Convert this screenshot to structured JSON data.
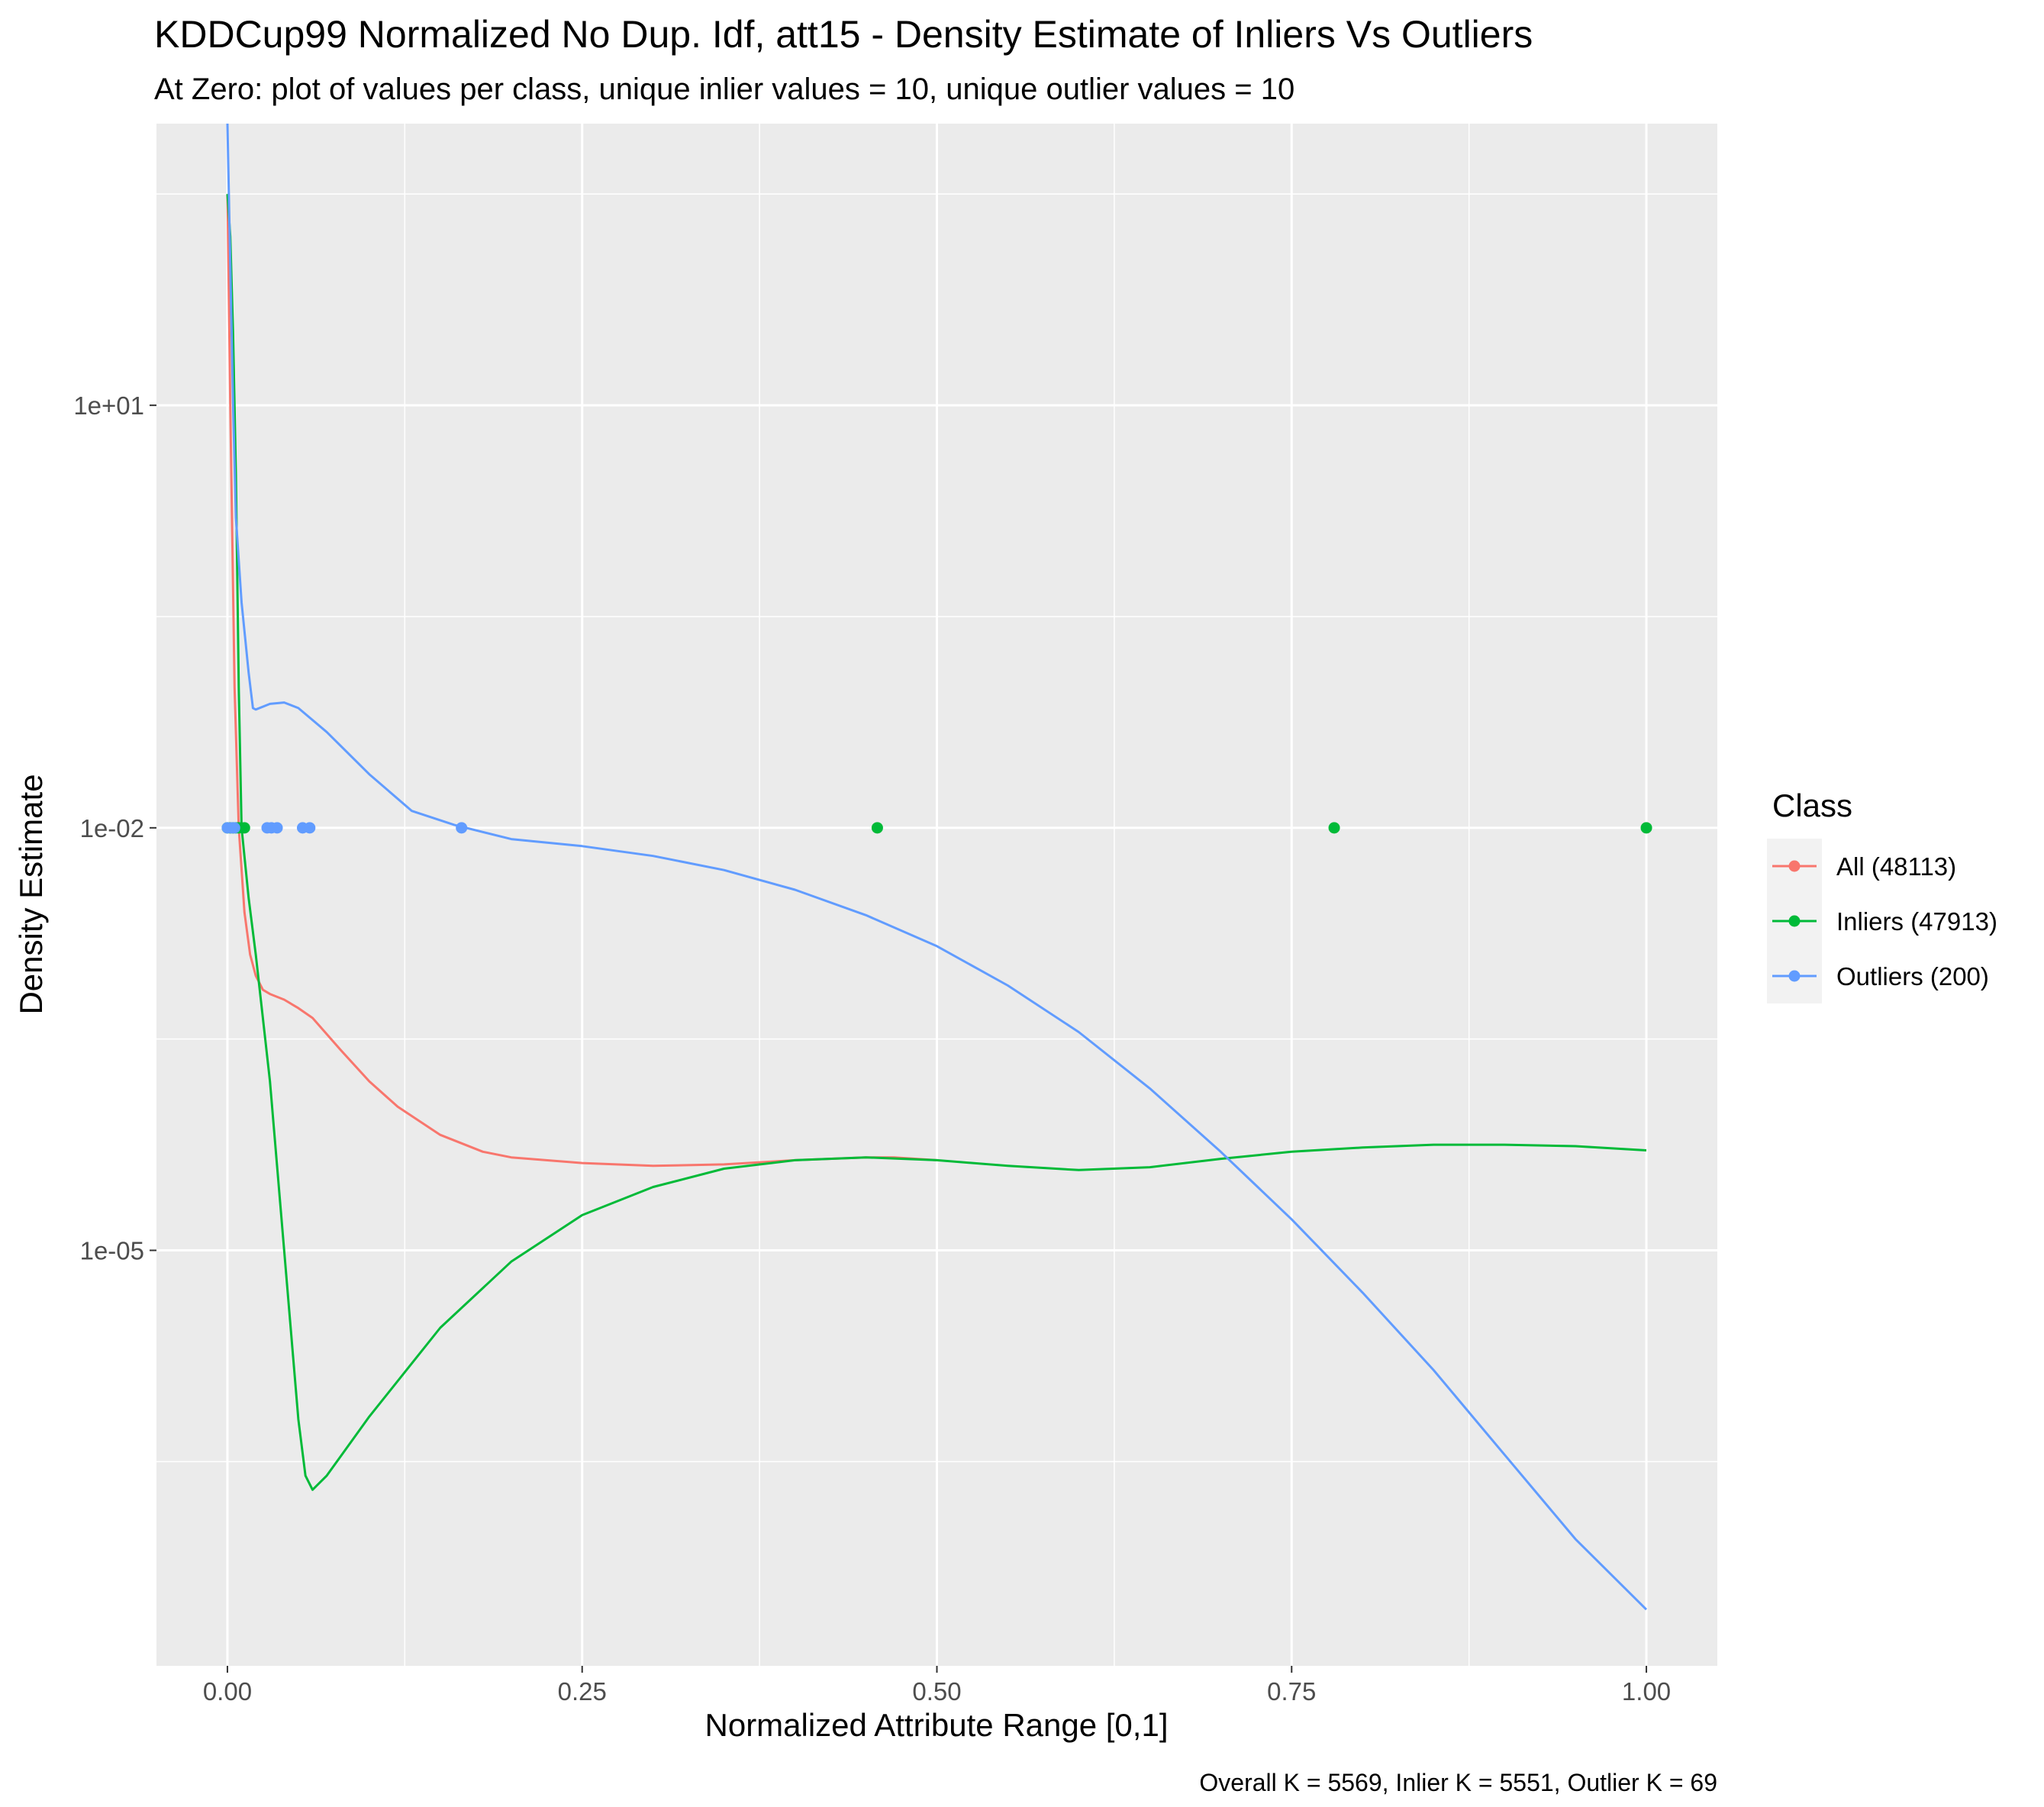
{
  "chart_data": {
    "type": "line",
    "title": "KDDCup99 Normalized No Dup. Idf, att15 - Density Estimate of Inliers Vs Outliers",
    "subtitle": "At Zero: plot of values per class, unique inlier values = 10, unique outlier values = 10",
    "xlabel": "Normalized Attribute Range [0,1]",
    "ylabel": "Density Estimate",
    "caption": "Overall K = 5569, Inlier K = 5551, Outlier K = 69",
    "y_scale": "log10",
    "xlim": [
      -0.05,
      1.05
    ],
    "ylim_log10": [
      -7.95,
      3.0
    ],
    "x_ticks": [
      0.0,
      0.25,
      0.5,
      0.75,
      1.0
    ],
    "x_tick_labels": [
      "0.00",
      "0.25",
      "0.50",
      "0.75",
      "1.00"
    ],
    "y_ticks_log10": [
      1,
      -2,
      -5
    ],
    "y_tick_labels": [
      "1e+01",
      "1e-02",
      "1e-05"
    ],
    "y_minor_ticks_log10": [
      2.5,
      -0.5,
      -3.5,
      -6.5
    ],
    "grid": true,
    "legend": {
      "title": "Class",
      "position": "right",
      "entries": [
        "All (48113)",
        "Inliers (47913)",
        "Outliers (200)"
      ]
    },
    "series": [
      {
        "name": "All (48113)",
        "color": "#F8766D",
        "x": [
          0.0,
          0.002,
          0.005,
          0.008,
          0.012,
          0.016,
          0.02,
          0.025,
          0.03,
          0.04,
          0.05,
          0.06,
          0.08,
          0.1,
          0.12,
          0.15,
          0.18,
          0.2,
          0.25,
          0.3,
          0.35,
          0.4,
          0.45,
          0.47,
          0.5
        ],
        "y_log10": [
          2.5,
          1.0,
          -1.0,
          -2.0,
          -2.6,
          -2.9,
          -3.05,
          -3.15,
          -3.18,
          -3.22,
          -3.28,
          -3.35,
          -3.58,
          -3.8,
          -3.98,
          -4.18,
          -4.3,
          -4.34,
          -4.38,
          -4.4,
          -4.39,
          -4.36,
          -4.34,
          -4.34,
          -4.36
        ]
      },
      {
        "name": "Inliers (47913)",
        "color": "#00BA38",
        "x": [
          0.0,
          0.002,
          0.004,
          0.006,
          0.008,
          0.01,
          0.015,
          0.02,
          0.03,
          0.04,
          0.05,
          0.055,
          0.06,
          0.07,
          0.1,
          0.15,
          0.2,
          0.25,
          0.3,
          0.35,
          0.4,
          0.45,
          0.5,
          0.55,
          0.6,
          0.65,
          0.7,
          0.75,
          0.8,
          0.85,
          0.9,
          0.95,
          1.0
        ],
        "y_log10": [
          2.5,
          2.2,
          1.5,
          0.5,
          -1.0,
          -2.0,
          -2.5,
          -2.9,
          -3.8,
          -5.0,
          -6.2,
          -6.6,
          -6.7,
          -6.6,
          -6.18,
          -5.55,
          -5.08,
          -4.75,
          -4.55,
          -4.42,
          -4.36,
          -4.34,
          -4.36,
          -4.4,
          -4.43,
          -4.41,
          -4.35,
          -4.3,
          -4.27,
          -4.25,
          -4.25,
          -4.26,
          -4.29
        ]
      },
      {
        "name": "Outliers (200)",
        "color": "#619CFF",
        "x": [
          0.0,
          0.002,
          0.004,
          0.006,
          0.01,
          0.015,
          0.018,
          0.02,
          0.03,
          0.04,
          0.05,
          0.07,
          0.1,
          0.13,
          0.16,
          0.2,
          0.25,
          0.3,
          0.35,
          0.4,
          0.45,
          0.5,
          0.55,
          0.6,
          0.65,
          0.7,
          0.75,
          0.8,
          0.85,
          0.9,
          0.95,
          1.0
        ],
        "y_log10": [
          3.0,
          2.0,
          1.0,
          0.2,
          -0.4,
          -0.9,
          -1.15,
          -1.16,
          -1.12,
          -1.11,
          -1.15,
          -1.32,
          -1.62,
          -1.88,
          -1.98,
          -2.08,
          -2.13,
          -2.2,
          -2.3,
          -2.44,
          -2.62,
          -2.84,
          -3.12,
          -3.45,
          -3.85,
          -4.3,
          -4.78,
          -5.3,
          -5.85,
          -6.45,
          -7.05,
          -7.55
        ]
      }
    ],
    "points": [
      {
        "series": "Inliers (47913)",
        "x": [
          0.0,
          0.002,
          0.004,
          0.006,
          0.008,
          0.012,
          0.458,
          0.78,
          1.0
        ],
        "y": 0.01
      },
      {
        "series": "Outliers (200)",
        "x": [
          0.0,
          0.003,
          0.005,
          0.028,
          0.031,
          0.035,
          0.053,
          0.058,
          0.165
        ],
        "y": 0.01
      }
    ]
  }
}
